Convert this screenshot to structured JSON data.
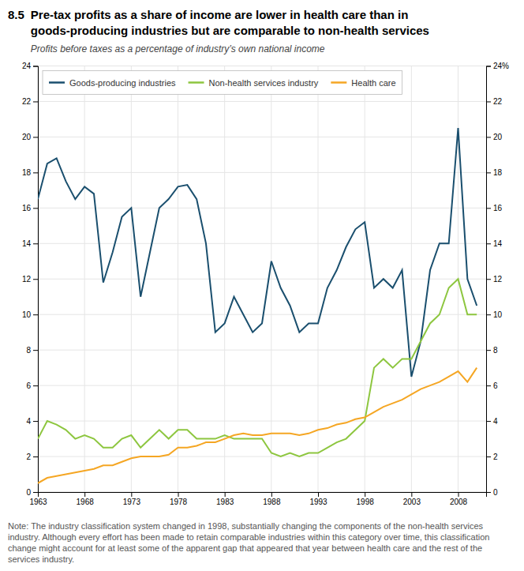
{
  "chart_data": {
    "type": "line",
    "title_number": "8.5",
    "title": "Pre-tax profits as a share of income are lower in health care than in\ngoods-producing industries but are comparable to non-health services",
    "subtitle": "Profits before taxes as a percentage of industry’s own national income",
    "note": "Note: The industry classification system changed in 1998, substantially changing the components of the non-health services industry. Although every effort has been made to retain comparable industries within this category over time, this classification change might account for at least some of the apparent gap that appeared that year between health care and the rest of the services industry.",
    "x": [
      1963,
      1964,
      1965,
      1966,
      1967,
      1968,
      1969,
      1970,
      1971,
      1972,
      1973,
      1974,
      1975,
      1976,
      1977,
      1978,
      1979,
      1980,
      1981,
      1982,
      1983,
      1984,
      1985,
      1986,
      1987,
      1988,
      1989,
      1990,
      1991,
      1992,
      1993,
      1994,
      1995,
      1996,
      1997,
      1998,
      1999,
      2000,
      2001,
      2002,
      2003,
      2004,
      2005,
      2006,
      2007,
      2008,
      2009,
      2010
    ],
    "series": [
      {
        "name": "Goods-producing industries",
        "color": "#1a4f6e",
        "values": [
          16.5,
          18.5,
          18.8,
          17.5,
          16.5,
          17.2,
          16.8,
          11.8,
          13.5,
          15.5,
          16.0,
          11.0,
          13.5,
          16.0,
          16.5,
          17.2,
          17.3,
          16.5,
          14.0,
          9.0,
          9.5,
          11.0,
          10.0,
          9.0,
          9.5,
          13.0,
          11.5,
          10.5,
          9.0,
          9.5,
          9.5,
          11.5,
          12.5,
          13.8,
          14.8,
          15.2,
          11.5,
          12.0,
          11.5,
          12.5,
          6.5,
          8.5,
          12.5,
          14.0,
          14.0,
          20.5,
          12.0,
          10.5
        ]
      },
      {
        "name": "Non-health services industry",
        "color": "#8dc63f",
        "values": [
          3.0,
          4.0,
          3.8,
          3.5,
          3.0,
          3.2,
          3.0,
          2.5,
          2.5,
          3.0,
          3.2,
          2.5,
          3.0,
          3.5,
          3.0,
          3.5,
          3.5,
          3.0,
          3.0,
          3.0,
          3.2,
          3.0,
          3.0,
          3.0,
          3.0,
          2.2,
          2.0,
          2.2,
          2.0,
          2.2,
          2.2,
          2.5,
          2.8,
          3.0,
          3.5,
          4.0,
          7.0,
          7.5,
          7.0,
          7.5,
          7.5,
          8.5,
          9.5,
          10.0,
          11.5,
          12.0,
          10.0,
          10.0
        ]
      },
      {
        "name": "Health care",
        "color": "#f5a623",
        "values": [
          0.5,
          0.8,
          0.9,
          1.0,
          1.1,
          1.2,
          1.3,
          1.5,
          1.5,
          1.7,
          1.9,
          2.0,
          2.0,
          2.0,
          2.1,
          2.5,
          2.5,
          2.6,
          2.8,
          2.8,
          3.0,
          3.2,
          3.3,
          3.2,
          3.2,
          3.3,
          3.3,
          3.3,
          3.2,
          3.3,
          3.5,
          3.6,
          3.8,
          3.9,
          4.1,
          4.2,
          4.5,
          4.8,
          5.0,
          5.2,
          5.5,
          5.8,
          6.0,
          6.2,
          6.5,
          6.8,
          6.2,
          7.0
        ]
      }
    ],
    "xlim": [
      1963,
      2011
    ],
    "xticks": [
      1963,
      1968,
      1973,
      1978,
      1983,
      1988,
      1993,
      1998,
      2003,
      2008
    ],
    "ylim": [
      0,
      24
    ],
    "yticks": [
      0,
      2,
      4,
      6,
      8,
      10,
      12,
      14,
      16,
      18,
      20,
      22,
      24
    ],
    "y2lim": [
      0,
      24
    ],
    "y2ticks": [
      0,
      2,
      4,
      6,
      8,
      10,
      12,
      14,
      16,
      18,
      20,
      22,
      {
        "value": 24,
        "label": "24%"
      }
    ],
    "grid": true,
    "legend": "upper left"
  }
}
